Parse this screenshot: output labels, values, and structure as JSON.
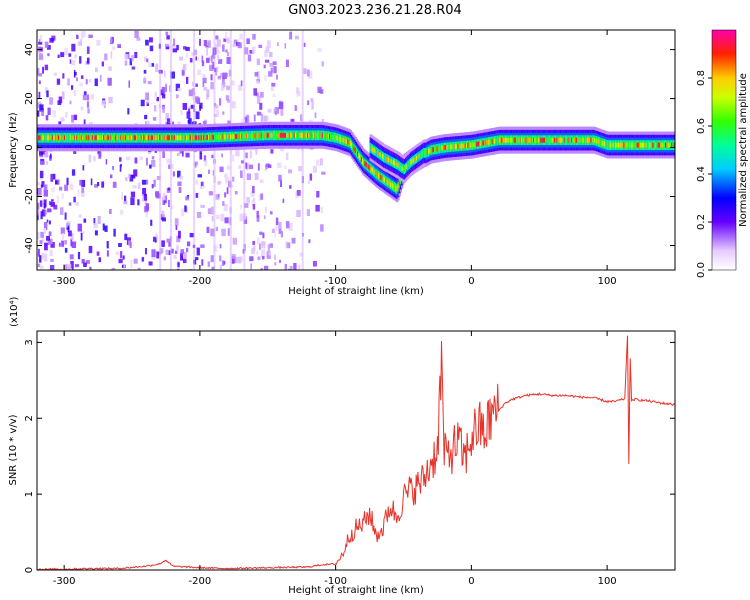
{
  "figure": {
    "title": "GN03.2023.236.21.28.R04"
  },
  "chart_data": [
    {
      "type": "heatmap",
      "xlabel": "Height of straight line (km)",
      "ylabel": "Frequency (Hz)",
      "xlim": [
        -320,
        150
      ],
      "ylim": [
        -50,
        48
      ],
      "xticks": [
        -300,
        -200,
        -100,
        0,
        100
      ],
      "yticks": [
        -40,
        -20,
        0,
        20,
        40
      ],
      "colorbar": {
        "label": "Normalized spectral amplitude",
        "ticks": [
          0.0,
          0.2,
          0.4,
          0.6,
          0.8
        ],
        "range": [
          0,
          1
        ]
      },
      "main_trace": [
        {
          "x": -320,
          "y": 4
        },
        {
          "x": -250,
          "y": 4
        },
        {
          "x": -200,
          "y": 4
        },
        {
          "x": -150,
          "y": 5
        },
        {
          "x": -110,
          "y": 5
        },
        {
          "x": -100,
          "y": 4
        },
        {
          "x": -90,
          "y": 2
        },
        {
          "x": -80,
          "y": -6
        },
        {
          "x": -70,
          "y": -11
        },
        {
          "x": -60,
          "y": -15
        },
        {
          "x": -55,
          "y": -17
        },
        {
          "x": -50,
          "y": -8
        },
        {
          "x": -40,
          "y": -4
        },
        {
          "x": -30,
          "y": -1
        },
        {
          "x": -20,
          "y": 0
        },
        {
          "x": 0,
          "y": 1
        },
        {
          "x": 20,
          "y": 3
        },
        {
          "x": 60,
          "y": 3
        },
        {
          "x": 90,
          "y": 3
        },
        {
          "x": 100,
          "y": 1
        },
        {
          "x": 150,
          "y": 1
        }
      ],
      "secondary_trace": [
        {
          "x": -75,
          "y": 0
        },
        {
          "x": -65,
          "y": -4
        },
        {
          "x": -55,
          "y": -7
        },
        {
          "x": -50,
          "y": -9
        },
        {
          "x": -45,
          "y": -6
        },
        {
          "x": -35,
          "y": -2
        }
      ]
    },
    {
      "type": "line",
      "xlabel": "Height of straight line (km)",
      "ylabel": "SNR (10 * v/v)",
      "y_multiplier": "(x10⁴)",
      "xlim": [
        -320,
        150
      ],
      "ylim": [
        0,
        3.15
      ],
      "xticks": [
        -300,
        -200,
        -100,
        0,
        100
      ],
      "yticks": [
        0,
        1,
        2,
        3
      ],
      "series": [
        {
          "color": "#e8332a",
          "x": [
            -320,
            -300,
            -280,
            -260,
            -240,
            -230,
            -225,
            -220,
            -200,
            -180,
            -150,
            -120,
            -110,
            -100,
            -95,
            -90,
            -85,
            -80,
            -75,
            -70,
            -65,
            -60,
            -55,
            -50,
            -45,
            -40,
            -35,
            -30,
            -25,
            -22,
            -20,
            -15,
            -10,
            -5,
            0,
            5,
            10,
            15,
            20,
            25,
            30,
            40,
            50,
            60,
            70,
            80,
            90,
            100,
            105,
            110,
            113,
            115,
            116,
            117,
            118,
            120,
            125,
            130,
            140,
            150
          ],
          "y": [
            0.01,
            0.01,
            0.02,
            0.02,
            0.05,
            0.08,
            0.13,
            0.05,
            0.03,
            0.02,
            0.03,
            0.04,
            0.07,
            0.08,
            0.2,
            0.45,
            0.55,
            0.6,
            0.75,
            0.45,
            0.55,
            0.85,
            0.7,
            0.95,
            1.05,
            1.1,
            1.2,
            1.4,
            1.6,
            2.75,
            1.5,
            1.55,
            1.7,
            1.45,
            1.75,
            1.9,
            1.8,
            2.05,
            2.1,
            2.2,
            2.25,
            2.3,
            2.32,
            2.3,
            2.3,
            2.28,
            2.27,
            2.22,
            2.22,
            2.24,
            2.26,
            3.1,
            1.4,
            2.8,
            2.22,
            2.25,
            2.24,
            2.23,
            2.2,
            2.18
          ]
        }
      ]
    }
  ]
}
